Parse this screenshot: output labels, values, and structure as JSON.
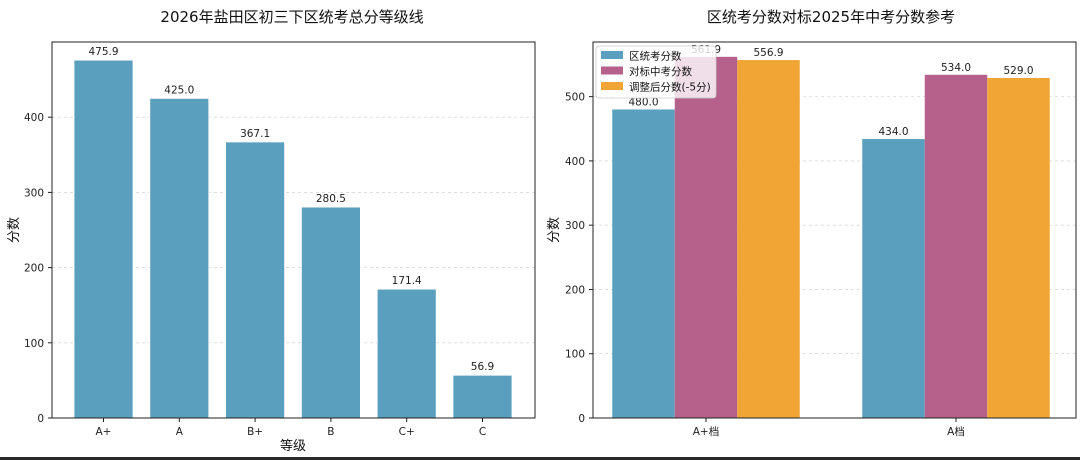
{
  "chart_data": [
    {
      "type": "bar",
      "title": "2026年盐田区初三下区统考总分等级线",
      "xlabel": "等级",
      "ylabel": "分数",
      "categories": [
        "A+",
        "A",
        "B+",
        "B",
        "C+",
        "C"
      ],
      "values": [
        475.9,
        425.0,
        367.1,
        280.5,
        171.4,
        56.9
      ],
      "data_labels": [
        "475.9",
        "425.0",
        "367.1",
        "280.5",
        "171.4",
        "56.9"
      ],
      "ylim": [
        0,
        500
      ],
      "yticks": [
        0,
        100,
        200,
        300,
        400
      ],
      "grid": true,
      "color": "#5b9fbf"
    },
    {
      "type": "bar",
      "title": "区统考分数对标2025年中考分数参考",
      "xlabel": "",
      "ylabel": "分数",
      "categories": [
        "A+档",
        "A档"
      ],
      "series": [
        {
          "name": "区统考分数",
          "values": [
            480.0,
            434.0
          ],
          "labels": [
            "480.0",
            "434.0"
          ],
          "color": "#5b9fbf"
        },
        {
          "name": "对标中考分数",
          "values": [
            561.9,
            534.0
          ],
          "labels": [
            "561.9",
            "534.0"
          ],
          "color": "#b5618c"
        },
        {
          "name": "调整后分数(-5分)",
          "values": [
            556.9,
            529.0
          ],
          "labels": [
            "556.9",
            "529.0"
          ],
          "color": "#f0a535"
        }
      ],
      "ylim": [
        0,
        585
      ],
      "yticks": [
        0,
        100,
        200,
        300,
        400,
        500
      ],
      "legend": "top-left",
      "grid": true
    }
  ]
}
